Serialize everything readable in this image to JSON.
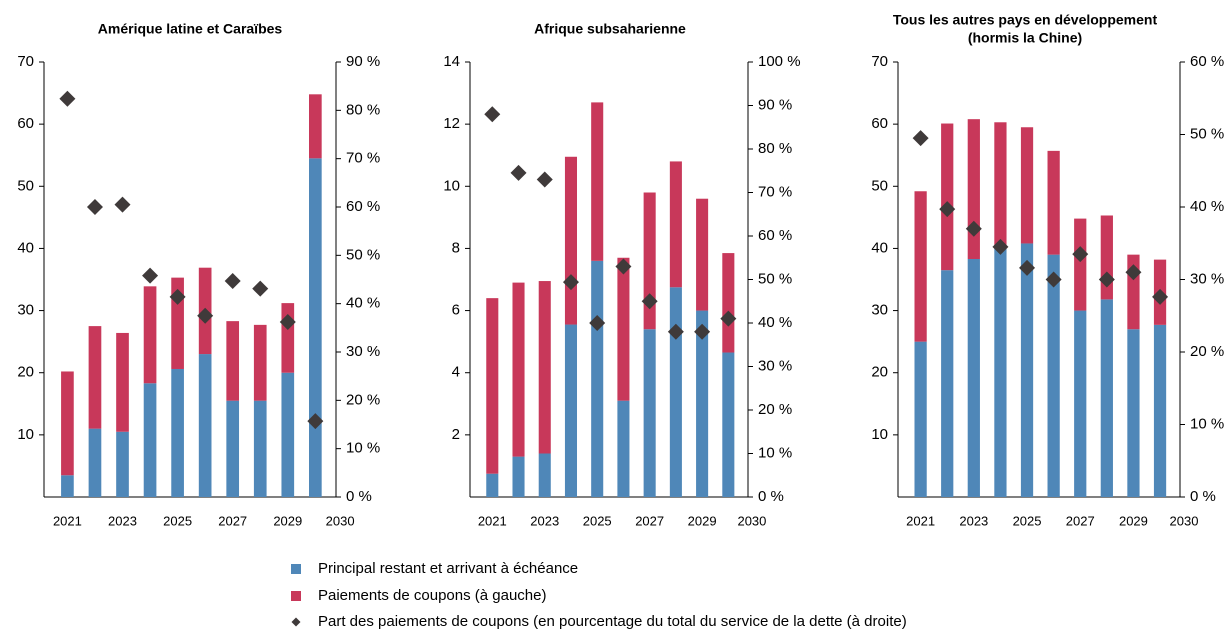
{
  "chart_data": [
    {
      "type": "bar",
      "title": [
        "Amérique latine et Caraïbes"
      ],
      "categories": [
        "2021",
        null,
        "2023",
        null,
        "2025",
        null,
        "2027",
        null,
        "2029",
        "2030"
      ],
      "series": [
        {
          "values": [
            3.5,
            11,
            10.5,
            18.3,
            20.6,
            23,
            15.5,
            15.5,
            20,
            54.5
          ]
        },
        {
          "values": [
            16.7,
            16.5,
            15.9,
            15.6,
            14.7,
            13.9,
            12.8,
            12.2,
            11.2,
            10.3
          ]
        },
        {
          "axis": "y2",
          "values": [
            82.4,
            60,
            60.5,
            45.8,
            41.4,
            37.5,
            44.7,
            43.1,
            36.2,
            15.7
          ]
        }
      ],
      "ylim": [
        0,
        70
      ],
      "yticks": [
        10,
        20,
        30,
        40,
        50,
        60,
        70
      ],
      "y2lim": [
        0,
        90
      ],
      "y2ticks": [
        {
          "value": 0,
          "label": "0 %"
        },
        {
          "value": 10,
          "label": "10 %"
        },
        {
          "value": 20,
          "label": "20 %"
        },
        {
          "value": 30,
          "label": "30 %"
        },
        {
          "value": 40,
          "label": "40 %"
        },
        {
          "value": 50,
          "label": "50 %"
        },
        {
          "value": 60,
          "label": "60 %"
        },
        {
          "value": 70,
          "label": "70 %"
        },
        {
          "value": 80,
          "label": "80 %"
        },
        {
          "value": 90,
          "label": "90 %"
        }
      ]
    },
    {
      "type": "bar",
      "title": [
        "Afrique subsaharienne"
      ],
      "categories": [
        "2021",
        null,
        "2023",
        null,
        "2025",
        null,
        "2027",
        null,
        "2029",
        "2030"
      ],
      "series": [
        {
          "values": [
            0.75,
            1.3,
            1.4,
            5.55,
            7.6,
            3.1,
            5.4,
            6.75,
            6.0,
            4.65
          ]
        },
        {
          "values": [
            5.65,
            5.6,
            5.55,
            5.4,
            5.1,
            4.6,
            4.4,
            4.05,
            3.6,
            3.2
          ]
        },
        {
          "axis": "y2",
          "values": [
            88,
            74.5,
            73,
            49.4,
            40,
            53,
            45,
            38,
            38,
            41
          ]
        }
      ],
      "ylim": [
        0,
        14
      ],
      "yticks": [
        2,
        4,
        6,
        8,
        10,
        12,
        14
      ],
      "y2lim": [
        0,
        100
      ],
      "y2ticks": [
        {
          "value": 0,
          "label": "0 %"
        },
        {
          "value": 10,
          "label": "10 %"
        },
        {
          "value": 20,
          "label": "20 %"
        },
        {
          "value": 30,
          "label": "30 %"
        },
        {
          "value": 40,
          "label": "40 %"
        },
        {
          "value": 50,
          "label": "50 %"
        },
        {
          "value": 60,
          "label": "60 %"
        },
        {
          "value": 70,
          "label": "70 %"
        },
        {
          "value": 80,
          "label": "80 %"
        },
        {
          "value": 90,
          "label": "90 %"
        },
        {
          "value": 100,
          "label": "100 %"
        }
      ]
    },
    {
      "type": "bar",
      "title": [
        "Tous les autres pays en développement",
        "(hormis la Chine)"
      ],
      "categories": [
        "2021",
        null,
        "2023",
        null,
        "2025",
        null,
        "2027",
        null,
        "2029",
        "2030"
      ],
      "series": [
        {
          "values": [
            25,
            36.5,
            38.3,
            40,
            40.8,
            39,
            30,
            31.8,
            27,
            27.7
          ]
        },
        {
          "values": [
            24.2,
            23.6,
            22.5,
            20.3,
            18.7,
            16.7,
            14.8,
            13.5,
            12,
            10.5
          ]
        },
        {
          "axis": "y2",
          "values": [
            49.5,
            39.7,
            37,
            34.5,
            31.6,
            30,
            33.5,
            30,
            31,
            27.6
          ]
        }
      ],
      "ylim": [
        0,
        70
      ],
      "yticks": [
        10,
        20,
        30,
        40,
        50,
        60,
        70
      ],
      "y2lim": [
        0,
        60
      ],
      "y2ticks": [
        {
          "value": 0,
          "label": "0 %"
        },
        {
          "value": 10,
          "label": "10 %"
        },
        {
          "value": 20,
          "label": "20 %"
        },
        {
          "value": 30,
          "label": "30 %"
        },
        {
          "value": 40,
          "label": "40 %"
        },
        {
          "value": 50,
          "label": "50 %"
        },
        {
          "value": 60,
          "label": "60 %"
        }
      ]
    }
  ],
  "legend": [
    {
      "name": "Principal restant et arrivant à échéance",
      "color": "#4f87b8"
    },
    {
      "name": "Paiements de coupons (à gauche)",
      "color": "#c8385a"
    },
    {
      "name": "Part des paiements de coupons (en pourcentage du total du service de la dette (à droite)",
      "color": "#3f3a3a"
    }
  ]
}
